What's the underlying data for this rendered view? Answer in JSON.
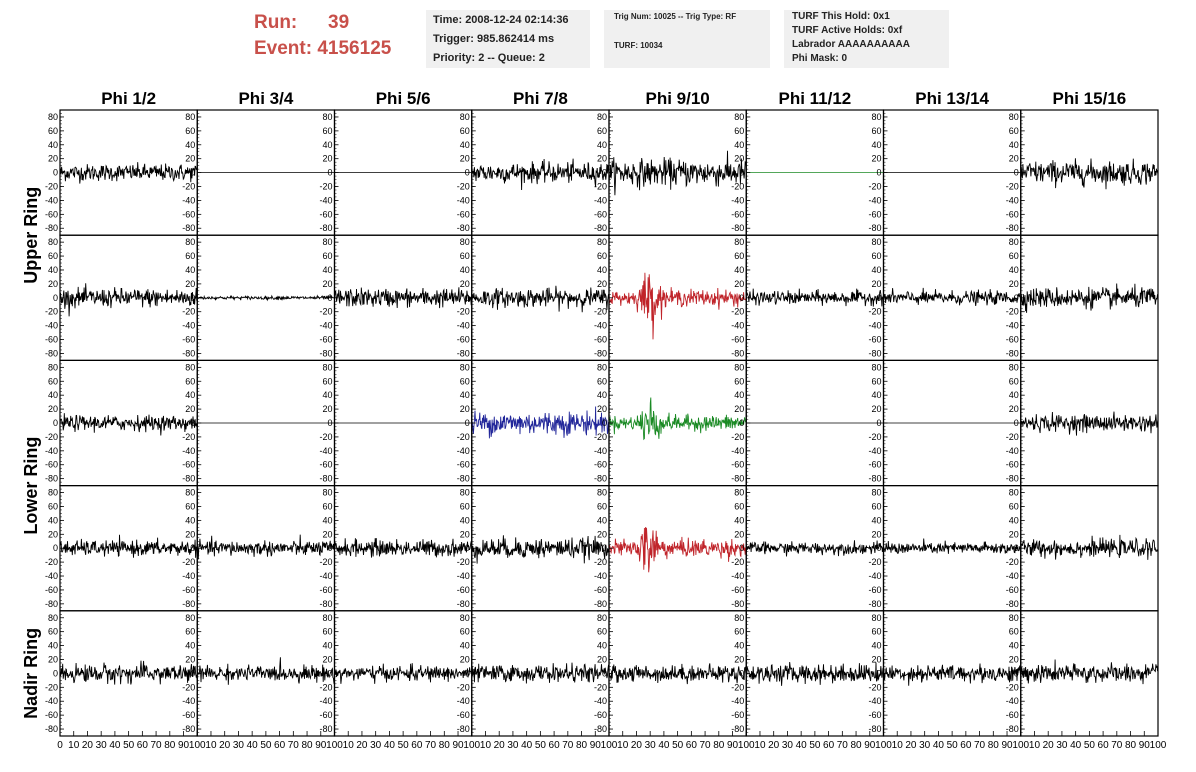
{
  "header": {
    "run_label": "Run:",
    "run_value": "39",
    "event_label": "Event:",
    "event_value": "4156125",
    "time": "Time: 2008-12-24 02:14:36",
    "trigger": "Trigger: 985.862414 ms",
    "priority": "Priority: 2 -- Queue: 2",
    "trig_num": "Trig Num: 10025 -- Trig Type: RF",
    "turf": "TURF: 10034",
    "turf_hold": "TURF This Hold: 0x1",
    "turf_active": "TURF Active Holds: 0xf",
    "labrador": "Labrador AAAAAAAAAA",
    "phi_mask": "Phi Mask: 0"
  },
  "chart_data": {
    "type": "line",
    "columns": [
      "Phi 1/2",
      "Phi 3/4",
      "Phi 5/6",
      "Phi 7/8",
      "Phi 9/10",
      "Phi 11/12",
      "Phi 13/14",
      "Phi 15/16"
    ],
    "rings": [
      {
        "label": "Upper Ring",
        "rows": [
          0,
          1
        ]
      },
      {
        "label": "Lower Ring",
        "rows": [
          2,
          3
        ]
      },
      {
        "label": "Nadir Ring",
        "rows": [
          4
        ]
      }
    ],
    "ylim": [
      -90,
      90
    ],
    "xlim": [
      0,
      100
    ],
    "yticks": [
      80,
      60,
      40,
      20,
      0,
      -20,
      -40,
      -60,
      -80
    ],
    "xticks": [
      0,
      10,
      20,
      30,
      40,
      50,
      60,
      70,
      80,
      90,
      100
    ],
    "xticks_last_col": [
      10,
      20,
      30,
      40,
      50,
      60,
      70,
      80,
      90,
      100
    ],
    "colors": {
      "black": "#000000",
      "red": "#c0242a",
      "blue": "#22279a",
      "green": "#1a8a24",
      "flat_green": "#1a8a24"
    },
    "panels": [
      [
        {
          "amp": 10,
          "color": "black"
        },
        {
          "amp": 0,
          "color": "black"
        },
        {
          "amp": 0,
          "color": "black"
        },
        {
          "amp": 12,
          "color": "black"
        },
        {
          "amp": 16,
          "color": "black"
        },
        {
          "amp": 0,
          "color": "flat_green"
        },
        {
          "amp": 0,
          "color": "black"
        },
        {
          "amp": 14,
          "color": "black"
        }
      ],
      [
        {
          "amp": 11,
          "color": "black"
        },
        {
          "amp": 2,
          "color": "black"
        },
        {
          "amp": 11,
          "color": "black"
        },
        {
          "amp": 11,
          "color": "black"
        },
        {
          "amp": 13,
          "color": "red",
          "burst": true
        },
        {
          "amp": 8,
          "color": "black"
        },
        {
          "amp": 8,
          "color": "black"
        },
        {
          "amp": 12,
          "color": "black"
        }
      ],
      [
        {
          "amp": 9,
          "color": "black"
        },
        {
          "amp": 0,
          "color": "black"
        },
        {
          "amp": 0,
          "color": "black"
        },
        {
          "amp": 14,
          "color": "blue"
        },
        {
          "amp": 12,
          "color": "green",
          "burst": true
        },
        {
          "amp": 0,
          "color": "black"
        },
        {
          "amp": 0,
          "color": "black"
        },
        {
          "amp": 10,
          "color": "black"
        }
      ],
      [
        {
          "amp": 9,
          "color": "black"
        },
        {
          "amp": 9,
          "color": "black"
        },
        {
          "amp": 10,
          "color": "black"
        },
        {
          "amp": 12,
          "color": "black"
        },
        {
          "amp": 14,
          "color": "red",
          "burst": true
        },
        {
          "amp": 7,
          "color": "black"
        },
        {
          "amp": 7,
          "color": "black"
        },
        {
          "amp": 10,
          "color": "black"
        }
      ],
      [
        {
          "amp": 11,
          "color": "black"
        },
        {
          "amp": 9,
          "color": "black"
        },
        {
          "amp": 9,
          "color": "black"
        },
        {
          "amp": 10,
          "color": "black"
        },
        {
          "amp": 10,
          "color": "black"
        },
        {
          "amp": 11,
          "color": "black"
        },
        {
          "amp": 10,
          "color": "black"
        },
        {
          "amp": 11,
          "color": "black"
        }
      ]
    ]
  }
}
